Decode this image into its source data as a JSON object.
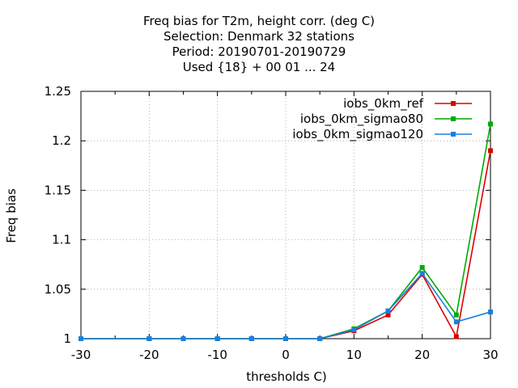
{
  "chart_data": {
    "type": "line",
    "title_lines": [
      "Freq bias  for T2m, height corr. (deg C)",
      "Selection: Denmark     32 stations",
      "Period: 20190701-20190729",
      "Used {18} + 00 01 ... 24"
    ],
    "xlabel": "thresholds C)",
    "ylabel": "Freq bias",
    "xlim": [
      -30,
      30
    ],
    "ylim": [
      1,
      1.25
    ],
    "xticks": [
      -30,
      -20,
      -10,
      0,
      10,
      20,
      30
    ],
    "xtick_labels": [
      "-30",
      "-20",
      "-10",
      "0",
      "10",
      "20",
      "30"
    ],
    "yticks": [
      1,
      1.05,
      1.1,
      1.15,
      1.2,
      1.25
    ],
    "ytick_labels": [
      "1",
      "1.05",
      "1.1",
      "1.15",
      "1.2",
      "1.25"
    ],
    "minor_xticks": [
      -25,
      -15,
      -5,
      5,
      15,
      25
    ],
    "grid": true,
    "legend_position": "top-right",
    "x": [
      -30,
      -20,
      -15,
      -10,
      -5,
      0,
      5,
      10,
      15,
      20,
      25,
      30
    ],
    "series": [
      {
        "name": "iobs_0km_ref",
        "color": "#dd0000",
        "values": [
          1.0,
          1.0,
          1.0,
          1.0,
          1.0,
          1.0,
          1.0,
          1.008,
          1.024,
          1.065,
          1.002,
          1.19
        ]
      },
      {
        "name": "iobs_0km_sigmao80",
        "color": "#00aa00",
        "values": [
          1.0,
          1.0,
          1.0,
          1.0,
          1.0,
          1.0,
          1.0,
          1.01,
          1.028,
          1.072,
          1.024,
          1.217
        ]
      },
      {
        "name": "iobs_0km_sigmao120",
        "color": "#1a7fe0",
        "values": [
          1.0,
          1.0,
          1.0,
          1.0,
          1.0,
          1.0,
          1.0,
          1.009,
          1.028,
          1.066,
          1.017,
          1.027
        ]
      }
    ]
  }
}
